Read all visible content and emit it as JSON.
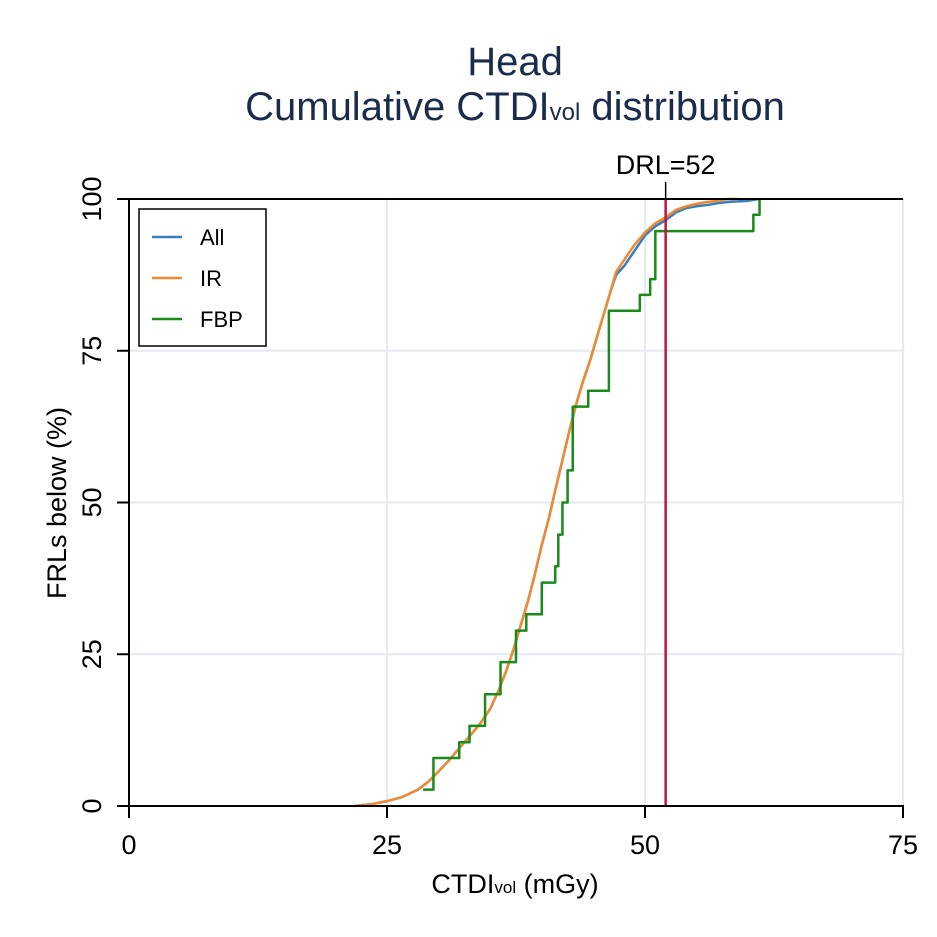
{
  "chart_data": {
    "type": "line",
    "title_line1": "Head",
    "title_line2_main": "Cumulative CTDI",
    "title_line2_sub": "vol",
    "title_line2_rest": " distribution",
    "xlabel_main": "CTDI",
    "xlabel_sub": "vol",
    "xlabel_rest": " (mGy)",
    "ylabel": "FRLs below (%)",
    "xlim": [
      0,
      75
    ],
    "ylim": [
      0,
      100
    ],
    "xticks": [
      0,
      25,
      50,
      75
    ],
    "yticks": [
      0,
      25,
      50,
      75,
      100
    ],
    "xtick_labels": [
      "0",
      "25",
      "50",
      "75"
    ],
    "ytick_labels": [
      "0",
      "25",
      "50",
      "75",
      "100"
    ],
    "grid": true,
    "legend_position": "top-left",
    "reference_line": {
      "x": 52,
      "label": "DRL=52",
      "color": "#c0143c"
    },
    "series": [
      {
        "name": "All",
        "color": "#3a7ec0",
        "step": false,
        "x": [
          21.8,
          23.5,
          25,
          26.5,
          28,
          29,
          30,
          31,
          32,
          33,
          34,
          35,
          35.8,
          36.5,
          37.2,
          38,
          38.7,
          39.3,
          40,
          40.7,
          41.3,
          42,
          42.7,
          43.3,
          44,
          44.7,
          45.3,
          46,
          46.7,
          47.2,
          48,
          49,
          50,
          51,
          52,
          53,
          54,
          55,
          56,
          57,
          58,
          59,
          60,
          61
        ],
        "y": [
          0,
          0.3,
          0.8,
          1.5,
          2.7,
          4,
          5.7,
          7.5,
          9.5,
          11.5,
          13.5,
          16,
          19,
          22,
          25.5,
          30,
          34,
          38,
          43,
          47.5,
          52,
          57,
          62,
          66,
          70,
          73.5,
          77,
          81,
          85,
          87.5,
          89,
          91.5,
          94,
          95.5,
          96.5,
          97.8,
          98.5,
          98.8,
          99,
          99.3,
          99.5,
          99.6,
          99.7,
          100
        ]
      },
      {
        "name": "IR",
        "color": "#f08a30",
        "step": false,
        "x": [
          21.8,
          23.5,
          25,
          26.5,
          28,
          29,
          30,
          31,
          32,
          33,
          34,
          35,
          35.8,
          36.5,
          37.2,
          38,
          38.7,
          39.3,
          40,
          40.7,
          41.3,
          42,
          42.7,
          43.3,
          44,
          44.7,
          45.3,
          46,
          46.7,
          47.2,
          48,
          49,
          50,
          51,
          52,
          53,
          54,
          55,
          56,
          57,
          58,
          59
        ],
        "y": [
          0,
          0.3,
          0.8,
          1.5,
          2.7,
          4,
          5.7,
          7.5,
          9.5,
          11.5,
          13.5,
          16,
          19,
          22,
          25.5,
          30,
          34,
          38,
          43,
          47.5,
          52,
          57,
          62,
          66,
          70,
          73.5,
          77,
          81,
          85,
          88,
          90,
          92.5,
          94.5,
          96,
          97,
          98.2,
          98.8,
          99.2,
          99.5,
          99.7,
          100,
          100
        ]
      },
      {
        "name": "FBP",
        "color": "#1a8a1a",
        "step": true,
        "x": [
          28.5,
          29.5,
          32,
          33,
          34.5,
          36,
          37.5,
          38.5,
          40,
          41.3,
          41.6,
          42,
          42.5,
          43,
          44.5,
          46.5,
          49.5,
          50.5,
          51,
          60.5,
          61.1
        ],
        "y": [
          2.7,
          7.9,
          10.5,
          13.2,
          18.4,
          23.7,
          28.9,
          31.6,
          36.8,
          39.5,
          44.7,
          50,
          55.3,
          65.8,
          68.4,
          81.6,
          84.2,
          86.8,
          94.7,
          97.4,
          100
        ]
      }
    ]
  }
}
